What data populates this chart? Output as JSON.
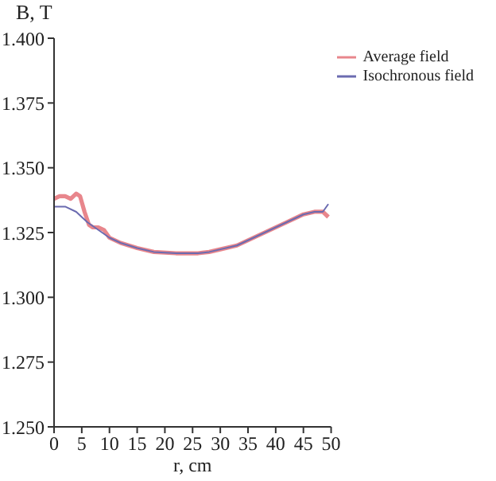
{
  "chart_data": {
    "type": "line",
    "xlabel": "r, cm",
    "ylabel": "B, T",
    "xlim": [
      0,
      50
    ],
    "xticks": [
      0,
      5,
      10,
      15,
      20,
      25,
      30,
      35,
      40,
      45,
      50
    ],
    "ylim": [
      1.25,
      1.4
    ],
    "yticks": [
      {
        "value": 1.25,
        "label": "1.250"
      },
      {
        "value": 1.275,
        "label": "1.275"
      },
      {
        "value": 1.3,
        "label": "1.300"
      },
      {
        "value": 1.325,
        "label": "1.325"
      },
      {
        "value": 1.35,
        "label": "1.350"
      },
      {
        "value": 1.375,
        "label": "1.375"
      },
      {
        "value": 1.4,
        "label": "1.400"
      }
    ],
    "grid": false,
    "legend": "top right",
    "marker": "none",
    "line_style": "solid",
    "series": [
      {
        "name": "Average field",
        "color": "#e8868c",
        "x": [
          0,
          1,
          2,
          3,
          4,
          4.7,
          5.5,
          6.3,
          7,
          8,
          9,
          10,
          12,
          15,
          18,
          22,
          26,
          28,
          30,
          33,
          36,
          39,
          42,
          45,
          47,
          48.5,
          49.5
        ],
        "values": [
          1.338,
          1.339,
          1.339,
          1.338,
          1.34,
          1.339,
          1.333,
          1.328,
          1.327,
          1.327,
          1.326,
          1.323,
          1.321,
          1.319,
          1.3175,
          1.317,
          1.317,
          1.3175,
          1.3185,
          1.32,
          1.323,
          1.326,
          1.329,
          1.332,
          1.333,
          1.333,
          1.331
        ]
      },
      {
        "name": "Isochronous field",
        "color": "#6b6bb0",
        "x": [
          0,
          2,
          4,
          6,
          8,
          10,
          12,
          15,
          18,
          22,
          26,
          28,
          30,
          33,
          36,
          39,
          42,
          45,
          47,
          48.5,
          49.5
        ],
        "values": [
          1.335,
          1.335,
          1.333,
          1.329,
          1.326,
          1.323,
          1.321,
          1.319,
          1.3175,
          1.317,
          1.317,
          1.3175,
          1.3185,
          1.32,
          1.323,
          1.326,
          1.329,
          1.332,
          1.333,
          1.333,
          1.336
        ]
      }
    ]
  }
}
